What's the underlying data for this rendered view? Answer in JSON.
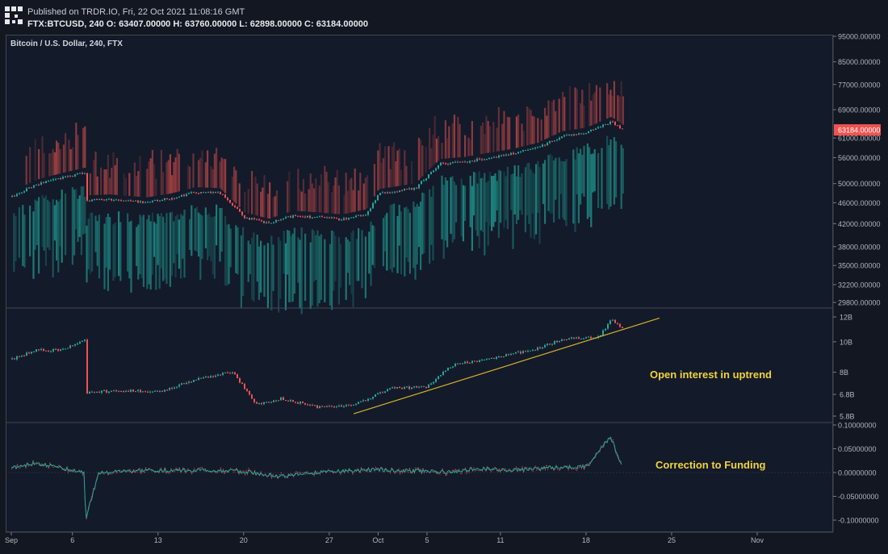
{
  "header": {
    "published": "Published on TRDR.IO, Fri, 22 Oct 2021 11:08:16 GMT",
    "ohlc": "FTX:BTCUSD, 240 O: 63407.00000 H: 63760.00000 L: 62898.00000 C: 63184.00000"
  },
  "chart_data": [
    {
      "type": "candlestick",
      "title": "Bitcoin / U.S. Dollar, 240, FTX",
      "y_ticks": [
        "95000.00000",
        "85000.00000",
        "77000.00000",
        "69000.00000",
        "61000.00000",
        "56000.00000",
        "50000.00000",
        "46000.00000",
        "42000.00000",
        "38000.00000",
        "35000.00000",
        "32200.00000",
        "29800.00000"
      ],
      "last_price": "63184.00000",
      "close_series": [
        {
          "date": "2021-09-01",
          "v": 47200
        },
        {
          "date": "2021-09-03",
          "v": 49800
        },
        {
          "date": "2021-09-05",
          "v": 51200
        },
        {
          "date": "2021-09-07",
          "v": 52500
        },
        {
          "date": "2021-09-07",
          "v": 46500
        },
        {
          "date": "2021-09-09",
          "v": 46700
        },
        {
          "date": "2021-09-12",
          "v": 46100
        },
        {
          "date": "2021-09-14",
          "v": 46900
        },
        {
          "date": "2021-09-16",
          "v": 48200
        },
        {
          "date": "2021-09-18",
          "v": 48000
        },
        {
          "date": "2021-09-20",
          "v": 43200
        },
        {
          "date": "2021-09-22",
          "v": 42000
        },
        {
          "date": "2021-09-24",
          "v": 43500
        },
        {
          "date": "2021-09-26",
          "v": 43200
        },
        {
          "date": "2021-09-28",
          "v": 42800
        },
        {
          "date": "2021-09-30",
          "v": 43800
        },
        {
          "date": "2021-10-01",
          "v": 47800
        },
        {
          "date": "2021-10-04",
          "v": 49000
        },
        {
          "date": "2021-10-06",
          "v": 54500
        },
        {
          "date": "2021-10-08",
          "v": 55000
        },
        {
          "date": "2021-10-10",
          "v": 56000
        },
        {
          "date": "2021-10-12",
          "v": 57000
        },
        {
          "date": "2021-10-14",
          "v": 58500
        },
        {
          "date": "2021-10-16",
          "v": 61500
        },
        {
          "date": "2021-10-18",
          "v": 62500
        },
        {
          "date": "2021-10-20",
          "v": 65500
        },
        {
          "date": "2021-10-21",
          "v": 63184
        }
      ]
    },
    {
      "type": "line",
      "y_ticks": [
        "12B",
        "10B",
        "8B",
        "6.8B",
        "5.8B"
      ],
      "annotation": "Open interest in uptrend",
      "series_values": [
        {
          "date": "2021-09-01",
          "v": 8.8
        },
        {
          "date": "2021-09-03",
          "v": 9.4
        },
        {
          "date": "2021-09-05",
          "v": 9.4
        },
        {
          "date": "2021-09-07",
          "v": 10.2
        },
        {
          "date": "2021-09-07",
          "v": 6.9
        },
        {
          "date": "2021-09-10",
          "v": 7.0
        },
        {
          "date": "2021-09-13",
          "v": 6.9
        },
        {
          "date": "2021-09-16",
          "v": 7.6
        },
        {
          "date": "2021-09-19",
          "v": 8.0
        },
        {
          "date": "2021-09-21",
          "v": 6.3
        },
        {
          "date": "2021-09-23",
          "v": 6.6
        },
        {
          "date": "2021-09-26",
          "v": 6.2
        },
        {
          "date": "2021-09-29",
          "v": 6.3
        },
        {
          "date": "2021-10-02",
          "v": 7.1
        },
        {
          "date": "2021-10-05",
          "v": 7.2
        },
        {
          "date": "2021-10-07",
          "v": 8.4
        },
        {
          "date": "2021-10-11",
          "v": 9.0
        },
        {
          "date": "2021-10-14",
          "v": 9.5
        },
        {
          "date": "2021-10-16",
          "v": 10.2
        },
        {
          "date": "2021-10-19",
          "v": 10.4
        },
        {
          "date": "2021-10-20",
          "v": 11.7
        },
        {
          "date": "2021-10-21",
          "v": 11.0
        }
      ],
      "trendline": [
        {
          "date": "2021-09-29",
          "v": 5.9
        },
        {
          "date": "2021-10-24",
          "v": 11.9
        }
      ]
    },
    {
      "type": "line",
      "y_ticks": [
        "0.10000000",
        "0.05000000",
        "0.00000000",
        "-0.05000000",
        "-0.10000000"
      ],
      "annotation": "Correction to Funding",
      "series_values": [
        {
          "date": "2021-09-01",
          "v": 0.01
        },
        {
          "date": "2021-09-03",
          "v": 0.02
        },
        {
          "date": "2021-09-05",
          "v": 0.01
        },
        {
          "date": "2021-09-07",
          "v": 0.0
        },
        {
          "date": "2021-09-07",
          "v": -0.1
        },
        {
          "date": "2021-09-08",
          "v": 0.0
        },
        {
          "date": "2021-09-12",
          "v": 0.004
        },
        {
          "date": "2021-09-16",
          "v": 0.005
        },
        {
          "date": "2021-09-20",
          "v": 0.002
        },
        {
          "date": "2021-09-23",
          "v": -0.008
        },
        {
          "date": "2021-09-27",
          "v": 0.003
        },
        {
          "date": "2021-10-01",
          "v": 0.006
        },
        {
          "date": "2021-10-05",
          "v": 0.003
        },
        {
          "date": "2021-10-07",
          "v": 0.0
        },
        {
          "date": "2021-10-09",
          "v": 0.008
        },
        {
          "date": "2021-10-12",
          "v": 0.005
        },
        {
          "date": "2021-10-15",
          "v": 0.01
        },
        {
          "date": "2021-10-18",
          "v": 0.012
        },
        {
          "date": "2021-10-20",
          "v": 0.075
        },
        {
          "date": "2021-10-21",
          "v": 0.01
        }
      ]
    }
  ],
  "x_ticks": [
    "Sep",
    "6",
    "13",
    "20",
    "27",
    "Oct",
    "5",
    "11",
    "18",
    "25",
    "Nov"
  ],
  "colors": {
    "up": "#26a69a",
    "down": "#ef5350",
    "trend": "#d5b32a",
    "annotation": "#f0d43a",
    "background": "#131a2a"
  }
}
